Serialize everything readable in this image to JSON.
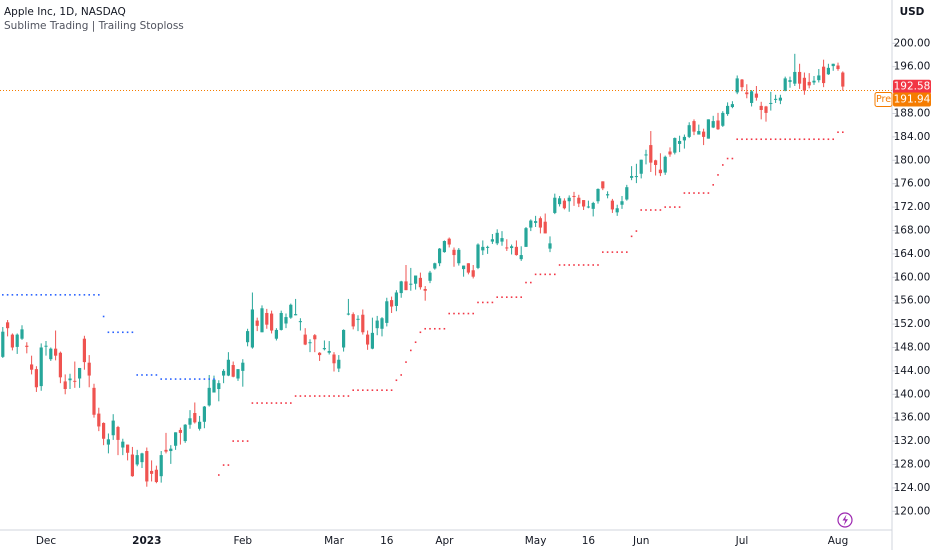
{
  "chart_data": {
    "type": "candlestick",
    "title": "Apple Inc, 1D, NASDAQ",
    "subtitle": "Sublime Trading | Trailing Stoploss",
    "ylabel": "USD",
    "up_color": "#26a69a",
    "down_color": "#ef5350",
    "ylim": [
      116.8,
      207.4
    ],
    "yticks": [
      {
        "value": 120,
        "label": "120.00"
      },
      {
        "value": 124,
        "label": "124.00"
      },
      {
        "value": 128,
        "label": "128.00"
      },
      {
        "value": 132,
        "label": "132.00"
      },
      {
        "value": 136,
        "label": "136.00"
      },
      {
        "value": 140,
        "label": "140.00"
      },
      {
        "value": 144,
        "label": "144.00"
      },
      {
        "value": 148,
        "label": "148.00"
      },
      {
        "value": 152,
        "label": "152.00"
      },
      {
        "value": 156,
        "label": "156.00"
      },
      {
        "value": 160,
        "label": "160.00"
      },
      {
        "value": 164,
        "label": "164.00"
      },
      {
        "value": 168,
        "label": "168.00"
      },
      {
        "value": 172,
        "label": "172.00"
      },
      {
        "value": 176,
        "label": "176.00"
      },
      {
        "value": 180,
        "label": "180.00"
      },
      {
        "value": 184,
        "label": "184.00"
      },
      {
        "value": 188,
        "label": "188.00"
      },
      {
        "value": 192,
        "label": "192.00"
      },
      {
        "value": 196,
        "label": "196.00"
      },
      {
        "value": 200,
        "label": "200.00"
      }
    ],
    "categories": [
      null,
      null,
      null,
      null,
      null,
      null,
      null,
      null,
      null,
      "Dec",
      null,
      null,
      null,
      null,
      null,
      null,
      null,
      null,
      null,
      null,
      null,
      null,
      null,
      null,
      null,
      null,
      null,
      null,
      null,
      null,
      "2023",
      null,
      null,
      null,
      null,
      null,
      null,
      null,
      null,
      null,
      null,
      null,
      null,
      null,
      null,
      null,
      null,
      null,
      null,
      null,
      "Feb",
      null,
      null,
      null,
      null,
      null,
      null,
      null,
      null,
      null,
      null,
      null,
      null,
      null,
      null,
      null,
      null,
      null,
      null,
      "Mar",
      null,
      null,
      null,
      null,
      null,
      null,
      null,
      null,
      null,
      null,
      "16",
      null,
      null,
      null,
      null,
      null,
      null,
      null,
      null,
      null,
      null,
      null,
      "Apr",
      null,
      null,
      null,
      null,
      null,
      null,
      null,
      null,
      null,
      null,
      null,
      null,
      null,
      null,
      null,
      null,
      null,
      null,
      "May",
      null,
      null,
      null,
      null,
      null,
      null,
      null,
      null,
      null,
      null,
      "16",
      null,
      null,
      null,
      null,
      null,
      null,
      null,
      null,
      null,
      null,
      "Jun",
      null,
      null,
      null,
      null,
      null,
      null,
      null,
      null,
      null,
      null,
      null,
      null,
      null,
      null,
      null,
      null,
      null,
      null,
      null,
      null,
      "Jul",
      null,
      null,
      null,
      null,
      null,
      null,
      null,
      null,
      null,
      null,
      null,
      null,
      null,
      null,
      null,
      null,
      null,
      null,
      null,
      "Aug",
      null
    ],
    "open": [
      146.4,
      152.3,
      150.2,
      148.1,
      149.5,
      148.3,
      145.1,
      144.3,
      141.4,
      148.2,
      146.0,
      147.8,
      147.1,
      142.2,
      142.4,
      142.3,
      142.7,
      149.5,
      145.4,
      141.1,
      136.7,
      135.1,
      131.4,
      133.0,
      134.4,
      130.9,
      131.4,
      129.7,
      128.0,
      128.4,
      130.3,
      126.9,
      127.1,
      126.0,
      130.5,
      130.3,
      131.2,
      133.9,
      132.0,
      134.8,
      136.8,
      134.1,
      135.3,
      138.1,
      140.3,
      140.9,
      143.2,
      143.2,
      145.0,
      142.7,
      144.0,
      148.9,
      148.0,
      152.6,
      150.6,
      153.9,
      153.8,
      149.5,
      151.0,
      152.1,
      153.1,
      153.5,
      152.4,
      150.2,
      148.9,
      150.1,
      147.1,
      147.7,
      147.1,
      146.8,
      144.4,
      148.0,
      153.8,
      153.7,
      152.8,
      153.6,
      150.2,
      147.8,
      151.3,
      151.2,
      152.2,
      156.1,
      155.1,
      157.3,
      159.3,
      158.8,
      158.9,
      159.9,
      158.0,
      159.4,
      161.5,
      162.4,
      164.3,
      166.6,
      164.7,
      162.4,
      161.4,
      162.4,
      161.2,
      161.6,
      164.6,
      165.1,
      166.1,
      165.8,
      166.1,
      165.1,
      165.0,
      165.2,
      163.1,
      165.2,
      168.5,
      169.3,
      170.1,
      169.5,
      164.9,
      171.0,
      172.5,
      173.1,
      173.0,
      173.9,
      173.6,
      173.2,
      172.0,
      171.7,
      173.0,
      176.4,
      174.0,
      173.1,
      171.1,
      172.4,
      173.3,
      177.0,
      177.3,
      177.7,
      181.0,
      182.6,
      180.0,
      178.4,
      177.9,
      181.5,
      181.3,
      182.8,
      183.4,
      184.0,
      186.7,
      184.4,
      184.9,
      183.7,
      185.6,
      186.8,
      185.9,
      187.9,
      189.1,
      191.6,
      193.8,
      191.6,
      189.8,
      191.4,
      189.3,
      189.2,
      189.7,
      190.5,
      190.2,
      191.9,
      193.4,
      193.1,
      195.1,
      194.1,
      193.4,
      193.3,
      193.7,
      196.0,
      194.7,
      196.1,
      196.2,
      195.0
    ],
    "high": [
      151.5,
      152.7,
      150.4,
      150.4,
      151.8,
      148.9,
      146.6,
      144.8,
      148.7,
      149.1,
      148.0,
      150.9,
      147.3,
      143.4,
      143.5,
      145.6,
      144.5,
      150.0,
      146.7,
      141.8,
      137.7,
      135.2,
      133.3,
      136.6,
      134.6,
      132.4,
      131.4,
      131.0,
      130.5,
      130.0,
      130.9,
      128.7,
      127.8,
      130.3,
      133.4,
      131.3,
      133.5,
      134.3,
      134.9,
      137.3,
      138.6,
      136.3,
      138.0,
      143.3,
      143.2,
      142.4,
      144.3,
      147.2,
      145.6,
      144.3,
      146.0,
      151.2,
      157.4,
      153.1,
      155.2,
      154.6,
      154.3,
      151.3,
      154.3,
      153.8,
      155.5,
      156.3,
      153.0,
      151.3,
      149.4,
      150.3,
      147.2,
      149.2,
      149.1,
      147.2,
      146.7,
      151.1,
      156.3,
      154.0,
      153.5,
      154.5,
      150.9,
      153.1,
      153.4,
      153.2,
      156.5,
      156.7,
      157.8,
      159.4,
      162.1,
      161.6,
      160.3,
      160.8,
      158.5,
      161.1,
      162.5,
      165.0,
      166.3,
      166.8,
      165.1,
      165.0,
      162.0,
      162.4,
      162.1,
      165.8,
      166.3,
      165.4,
      167.4,
      168.2,
      167.9,
      166.5,
      165.6,
      166.3,
      165.3,
      168.6,
      169.9,
      170.5,
      170.4,
      170.9,
      167.0,
      174.3,
      173.9,
      173.5,
      174.0,
      174.6,
      174.1,
      173.2,
      173.1,
      172.9,
      175.2,
      176.4,
      174.7,
      173.4,
      172.4,
      173.9,
      175.8,
      179.0,
      179.4,
      180.1,
      181.8,
      185.0,
      180.1,
      181.2,
      180.8,
      182.2,
      183.9,
      184.2,
      184.4,
      186.5,
      187.0,
      186.1,
      185.4,
      187.0,
      187.6,
      188.1,
      188.4,
      189.9,
      190.1,
      194.5,
      193.9,
      193.0,
      192.0,
      192.7,
      190.0,
      189.3,
      191.7,
      191.2,
      191.2,
      194.3,
      194.3,
      198.2,
      196.5,
      195.0,
      194.9,
      194.4,
      195.6,
      197.2,
      196.5,
      196.5,
      196.7,
      195.2
    ],
    "low": [
      146.2,
      149.9,
      147.5,
      146.9,
      149.3,
      147.0,
      143.4,
      140.4,
      140.6,
      146.6,
      145.7,
      145.8,
      141.9,
      140.0,
      140.9,
      141.1,
      141.1,
      144.2,
      141.2,
      136.0,
      133.7,
      131.3,
      129.9,
      132.2,
      129.6,
      129.6,
      128.7,
      125.9,
      127.7,
      127.4,
      124.2,
      125.1,
      124.8,
      124.9,
      129.9,
      128.1,
      130.5,
      131.4,
      131.7,
      134.1,
      135.0,
      133.8,
      134.2,
      137.9,
      140.3,
      138.8,
      141.9,
      143.1,
      142.9,
      142.3,
      141.3,
      148.2,
      147.8,
      150.8,
      150.6,
      151.2,
      150.4,
      149.2,
      150.9,
      151.3,
      152.9,
      153.5,
      150.9,
      148.4,
      147.2,
      147.2,
      145.7,
      147.5,
      146.8,
      143.9,
      143.8,
      147.3,
      153.5,
      151.1,
      150.8,
      150.2,
      147.6,
      147.7,
      150.1,
      149.9,
      151.6,
      153.9,
      154.2,
      156.5,
      157.8,
      157.7,
      157.9,
      157.9,
      156.0,
      159.0,
      161.3,
      161.9,
      164.2,
      165.1,
      161.8,
      162.0,
      160.1,
      160.5,
      159.8,
      161.4,
      163.8,
      164.0,
      165.7,
      165.5,
      165.4,
      164.5,
      163.9,
      163.7,
      162.8,
      165.2,
      167.9,
      168.6,
      167.5,
      167.5,
      164.3,
      170.8,
      172.1,
      171.6,
      171.2,
      172.2,
      172.0,
      171.5,
      171.8,
      170.4,
      172.6,
      174.9,
      173.5,
      171.0,
      170.5,
      171.7,
      173.1,
      176.6,
      176.1,
      176.9,
      179.3,
      178.0,
      177.4,
      177.3,
      177.5,
      180.6,
      181.0,
      181.4,
      182.0,
      183.8,
      184.3,
      184.4,
      182.6,
      183.7,
      185.5,
      185.2,
      185.7,
      187.6,
      188.9,
      191.3,
      191.8,
      190.6,
      189.2,
      190.2,
      187.0,
      186.6,
      188.5,
      189.8,
      189.6,
      191.8,
      192.4,
      192.7,
      192.2,
      191.2,
      192.3,
      192.9,
      193.3,
      192.5,
      194.6,
      195.3,
      195.3,
      191.9
    ],
    "close": [
      150.7,
      151.3,
      148.0,
      150.2,
      151.1,
      148.1,
      144.2,
      141.2,
      148.0,
      148.3,
      147.8,
      146.6,
      142.9,
      140.9,
      142.7,
      142.2,
      144.5,
      145.5,
      143.2,
      136.5,
      134.5,
      132.4,
      132.3,
      135.5,
      132.2,
      131.9,
      130.0,
      126.0,
      129.6,
      129.9,
      125.1,
      126.4,
      125.0,
      129.6,
      130.2,
      130.7,
      133.5,
      133.4,
      134.8,
      135.9,
      135.2,
      135.3,
      137.9,
      141.1,
      142.5,
      141.9,
      144.0,
      145.9,
      143.0,
      144.3,
      145.4,
      150.8,
      154.5,
      151.7,
      154.7,
      151.9,
      150.9,
      151.0,
      153.9,
      153.2,
      155.3,
      153.7,
      152.5,
      148.5,
      148.9,
      149.4,
      146.7,
      147.9,
      147.4,
      145.3,
      145.9,
      151.0,
      153.8,
      151.6,
      152.9,
      150.6,
      148.5,
      150.5,
      152.6,
      153.0,
      155.9,
      155.0,
      157.4,
      159.3,
      157.8,
      158.9,
      160.3,
      158.3,
      157.7,
      160.8,
      162.4,
      164.9,
      166.2,
      165.6,
      163.8,
      164.7,
      162.0,
      160.8,
      160.1,
      165.6,
      165.2,
      165.2,
      166.5,
      167.6,
      166.7,
      165.0,
      165.3,
      163.8,
      163.8,
      168.4,
      169.7,
      169.6,
      168.5,
      167.5,
      165.8,
      173.6,
      173.5,
      171.8,
      173.6,
      173.8,
      172.6,
      172.1,
      172.1,
      172.7,
      175.1,
      175.2,
      174.2,
      171.6,
      171.8,
      173.0,
      175.4,
      177.3,
      177.3,
      180.1,
      181.0,
      179.6,
      179.2,
      177.8,
      180.6,
      181.0,
      183.8,
      183.3,
      184.0,
      186.0,
      184.9,
      185.0,
      184.0,
      187.0,
      186.7,
      185.3,
      188.1,
      189.3,
      189.6,
      194.0,
      192.5,
      191.3,
      191.8,
      190.7,
      188.6,
      188.1,
      189.8,
      190.5,
      190.7,
      194.0,
      193.7,
      195.1,
      193.1,
      191.9,
      192.8,
      193.6,
      194.5,
      193.2,
      195.8,
      196.5,
      195.6,
      192.6
    ],
    "trail_stops": [
      {
        "color": "#2962ff",
        "values": [
          157.0,
          157.0,
          157.0,
          157.0,
          157.0,
          157.0,
          157.0,
          157.0,
          157.0,
          157.0,
          157.0,
          157.0,
          157.0,
          157.0,
          157.0,
          157.0,
          157.0,
          157.0,
          157.0,
          157.0,
          157.0,
          153.3,
          150.6,
          150.6,
          150.6,
          150.6,
          150.6,
          150.6,
          143.3,
          143.3,
          143.3,
          143.3,
          143.3,
          142.6,
          142.6,
          142.6,
          142.6,
          142.6,
          142.6,
          142.6,
          142.6,
          142.6,
          142.6,
          142.6,
          142.6,
          null,
          null,
          null,
          null,
          null,
          null,
          null,
          null,
          null,
          null,
          null,
          null,
          null,
          null,
          null,
          null,
          null,
          null,
          null,
          null,
          null,
          null,
          null,
          null,
          null,
          null,
          null,
          null,
          null,
          null,
          null,
          null,
          null,
          null,
          null,
          null,
          null,
          null,
          null,
          null,
          null,
          null,
          null,
          null,
          null,
          null,
          null,
          null,
          null,
          null,
          null,
          null,
          null,
          null,
          null,
          null,
          null,
          null,
          null,
          null,
          null,
          null,
          null,
          null,
          null,
          null,
          null,
          null,
          null,
          null,
          null,
          null,
          null,
          null,
          null,
          null,
          null,
          null,
          null,
          null,
          null,
          null,
          null,
          null,
          null,
          null,
          null,
          null,
          null,
          null,
          null,
          null,
          null,
          null,
          null,
          null,
          null,
          null,
          null,
          null,
          null,
          null,
          null,
          null,
          null,
          null,
          null,
          null,
          null,
          null,
          null,
          null,
          null,
          null,
          null,
          null,
          null,
          null,
          null,
          null,
          null,
          null,
          null,
          null,
          null,
          null,
          null,
          null,
          null,
          null
        ]
      },
      {
        "color": "#f23645",
        "values": [
          null,
          null,
          null,
          null,
          null,
          null,
          null,
          null,
          null,
          null,
          null,
          null,
          null,
          null,
          null,
          null,
          null,
          null,
          null,
          null,
          null,
          null,
          null,
          null,
          null,
          null,
          null,
          null,
          null,
          null,
          null,
          null,
          null,
          null,
          null,
          null,
          null,
          null,
          null,
          null,
          null,
          null,
          null,
          null,
          null,
          126.2,
          127.9,
          127.9,
          132.0,
          132.0,
          132.0,
          132.0,
          138.5,
          138.5,
          138.5,
          138.5,
          138.5,
          138.5,
          138.5,
          138.5,
          138.5,
          139.7,
          139.7,
          139.7,
          139.7,
          139.7,
          139.7,
          139.7,
          139.7,
          139.7,
          139.7,
          139.7,
          139.7,
          140.7,
          140.7,
          140.7,
          140.7,
          140.7,
          140.7,
          140.7,
          140.7,
          140.7,
          142.4,
          143.3,
          145.5,
          147.5,
          148.9,
          150.6,
          151.2,
          151.2,
          151.2,
          151.2,
          151.2,
          153.8,
          153.8,
          153.8,
          153.8,
          153.8,
          153.8,
          155.7,
          155.7,
          155.7,
          155.7,
          156.6,
          156.6,
          156.6,
          156.6,
          156.6,
          156.6,
          159.1,
          159.1,
          160.5,
          160.5,
          160.5,
          160.5,
          160.5,
          162.1,
          162.1,
          162.1,
          162.1,
          162.1,
          162.1,
          162.1,
          162.1,
          162.1,
          164.3,
          164.3,
          164.3,
          164.3,
          164.3,
          164.3,
          167.0,
          167.9,
          171.5,
          171.5,
          171.5,
          171.5,
          171.5,
          172.0,
          172.0,
          172.0,
          172.0,
          174.4,
          174.4,
          174.4,
          174.4,
          174.4,
          174.4,
          175.8,
          177.5,
          179.2,
          180.3,
          180.3,
          183.6,
          183.6,
          183.6,
          183.6,
          183.6,
          183.6,
          183.6,
          183.6,
          183.6,
          183.6,
          183.6,
          183.6,
          183.6,
          183.6,
          183.6,
          183.6,
          183.6,
          183.6,
          183.6,
          183.6,
          183.6,
          184.8,
          184.8
        ]
      }
    ],
    "last_price": 192.58,
    "last_color": "#f23645",
    "premarket": {
      "tag": "Pre",
      "value": 191.94,
      "color": "#f57c00"
    }
  }
}
